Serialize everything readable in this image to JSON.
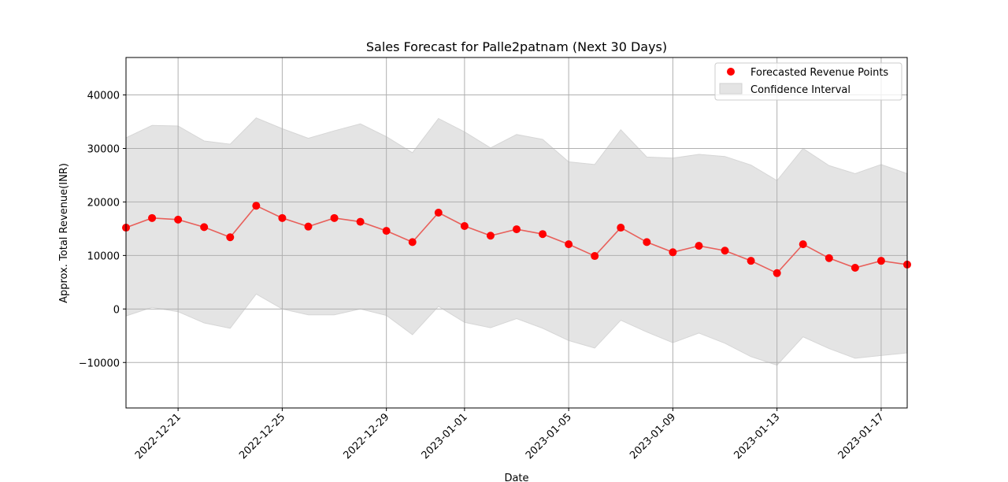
{
  "chart_data": {
    "type": "line",
    "title": "Sales Forecast for Palle2patnam (Next 30 Days)",
    "xlabel": "Date",
    "ylabel": "Approx. Total Revenue(INR)",
    "xlim": [
      "2022-12-19",
      "2023-01-18"
    ],
    "ylim": [
      -18500,
      47000
    ],
    "grid": true,
    "legend_position": "top-right",
    "x_ticks": [
      "2022-12-21",
      "2022-12-25",
      "2022-12-29",
      "2023-01-01",
      "2023-01-05",
      "2023-01-09",
      "2023-01-13",
      "2023-01-17"
    ],
    "y_ticks": [
      -10000,
      0,
      10000,
      20000,
      30000,
      40000
    ],
    "y_tick_labels": [
      "−10000",
      "0",
      "10000",
      "20000",
      "30000",
      "40000"
    ],
    "x": [
      "2022-12-19",
      "2022-12-20",
      "2022-12-21",
      "2022-12-22",
      "2022-12-23",
      "2022-12-24",
      "2022-12-25",
      "2022-12-26",
      "2022-12-27",
      "2022-12-28",
      "2022-12-29",
      "2022-12-30",
      "2022-12-31",
      "2023-01-01",
      "2023-01-02",
      "2023-01-03",
      "2023-01-04",
      "2023-01-05",
      "2023-01-06",
      "2023-01-07",
      "2023-01-08",
      "2023-01-09",
      "2023-01-10",
      "2023-01-11",
      "2023-01-12",
      "2023-01-13",
      "2023-01-14",
      "2023-01-15",
      "2023-01-16",
      "2023-01-17",
      "2023-01-18"
    ],
    "series": [
      {
        "name": "Forecasted Revenue Points",
        "color": "#ff0000",
        "line_color": "#e8605b",
        "values": [
          15200,
          17000,
          16700,
          15300,
          13400,
          19300,
          17000,
          15400,
          17000,
          16300,
          14600,
          12500,
          18000,
          15500,
          13700,
          14900,
          14000,
          12100,
          9900,
          15200,
          12500,
          10600,
          11800,
          10900,
          9000,
          6700,
          12100,
          9500,
          7700,
          9000,
          8300
        ]
      },
      {
        "name": "Confidence Interval",
        "color": "#e4e4e4",
        "upper": [
          32000,
          34300,
          34200,
          31400,
          30800,
          35700,
          33700,
          31900,
          33300,
          34600,
          32200,
          29200,
          35600,
          33100,
          30100,
          32600,
          31700,
          27500,
          27000,
          33500,
          28400,
          28200,
          28900,
          28500,
          26900,
          24000,
          30000,
          26800,
          25300,
          27000,
          25300
        ],
        "lower": [
          -1300,
          300,
          -500,
          -2600,
          -3600,
          2800,
          0,
          -1100,
          -1100,
          0,
          -1200,
          -4800,
          500,
          -2500,
          -3500,
          -1800,
          -3600,
          -5900,
          -7300,
          -2100,
          -4300,
          -6300,
          -4500,
          -6400,
          -8900,
          -10500,
          -5200,
          -7400,
          -9200,
          -8700,
          -8200
        ]
      }
    ]
  }
}
